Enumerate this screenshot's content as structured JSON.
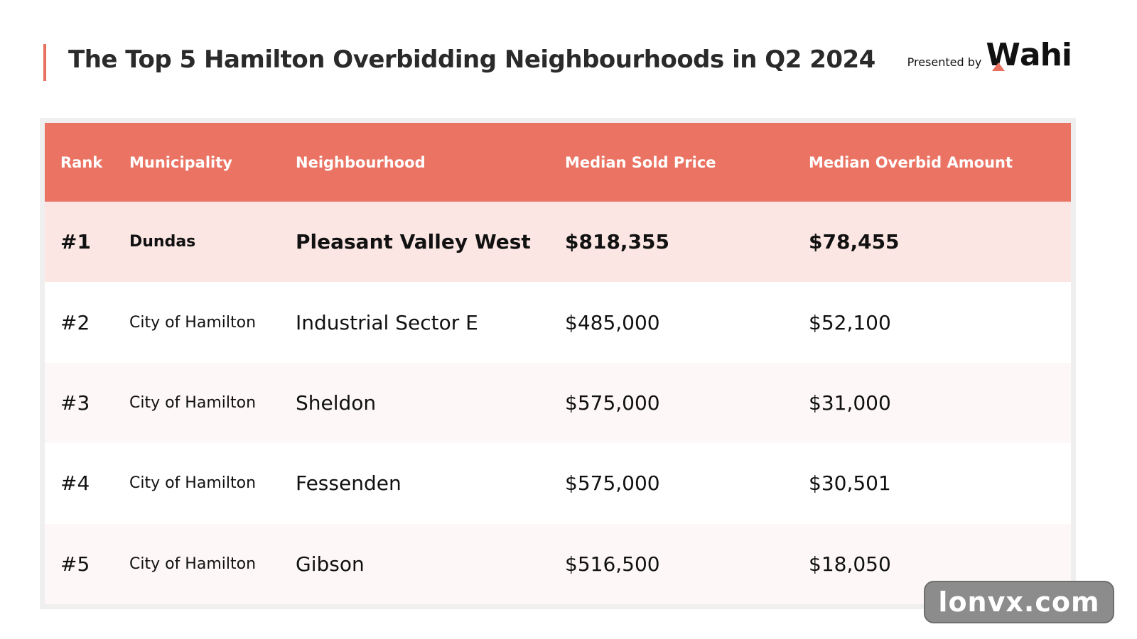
{
  "title": "The Top 5 Hamilton Overbidding Neighbourhoods in Q2 2024",
  "presented_by": "Presented by",
  "logo": {
    "w": "W",
    "rest": "ahi",
    "accent": "#e8705f"
  },
  "watermark": "lonvx.com",
  "chart_data": {
    "type": "table",
    "title": "The Top 5 Hamilton Overbidding Neighbourhoods in Q2 2024",
    "columns": [
      "Rank",
      "Municipality",
      "Neighbourhood",
      "Median Sold Price",
      "Median Overbid Amount"
    ],
    "rows": [
      [
        "#1",
        "Dundas",
        "Pleasant Valley West",
        "$818,355",
        "$78,455"
      ],
      [
        "#2",
        "City of Hamilton",
        "Industrial Sector E",
        "$485,000",
        "$52,100"
      ],
      [
        "#3",
        "City of Hamilton",
        "Sheldon",
        "$575,000",
        "$31,000"
      ],
      [
        "#4",
        "City of Hamilton",
        "Fessenden",
        "$575,000",
        "$30,501"
      ],
      [
        "#5",
        "City of Hamilton",
        "Gibson",
        "$516,500",
        "$18,050"
      ]
    ],
    "colors": {
      "header": "#ea7363",
      "highlight_row": "#fbe6e3"
    }
  }
}
